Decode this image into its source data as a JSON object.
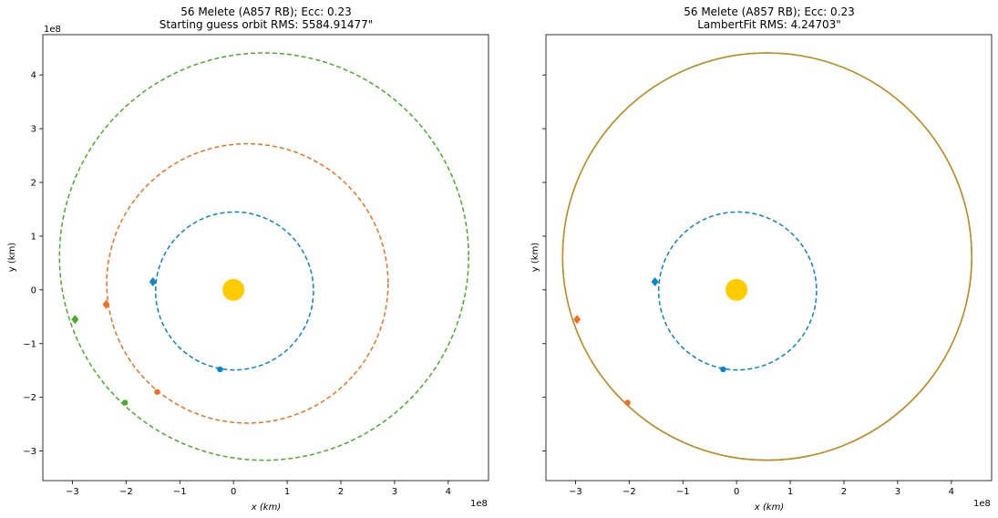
{
  "chart_data": [
    {
      "type": "scatter",
      "title_line1": "56 Melete (A857 RB); Ecc: 0.23",
      "title_line2": "Starting guess orbit RMS: 5584.91477\"",
      "xlabel": "x (km)",
      "ylabel": "y (km)",
      "x_offset_label": "1e8",
      "y_offset_label": "1e8",
      "xlim": [
        -3.55,
        4.75
      ],
      "ylim": [
        -3.55,
        4.75
      ],
      "xticks": [
        -3,
        -2,
        -1,
        0,
        1,
        2,
        3,
        4
      ],
      "yticks": [
        -3,
        -2,
        -1,
        0,
        1,
        2,
        3,
        4
      ],
      "show_yticklabels": true,
      "grid": false,
      "sun": {
        "x": 0,
        "y": 0,
        "color": "#ffcc00"
      },
      "orbits": [
        {
          "cx": 0.02,
          "cy": -0.02,
          "rx": 1.47,
          "ry": 1.47,
          "color": "#0a84c8",
          "style": "dashed"
        },
        {
          "cx": 0.26,
          "cy": 0.12,
          "rx": 2.62,
          "ry": 2.6,
          "color": "#f07020",
          "style": "dashed"
        },
        {
          "cx": 0.57,
          "cy": 0.62,
          "rx": 3.81,
          "ry": 3.79,
          "color": "#4aaa2a",
          "style": "dashed"
        }
      ],
      "markers": [
        {
          "x": -1.5,
          "y": 0.15,
          "shape": "diamond",
          "color": "#0a84c8"
        },
        {
          "x": -0.25,
          "y": -1.48,
          "shape": "circle",
          "color": "#0a84c8"
        },
        {
          "x": -2.37,
          "y": -0.27,
          "shape": "diamond",
          "color": "#f07020"
        },
        {
          "x": -1.42,
          "y": -1.9,
          "shape": "circle",
          "color": "#f07020"
        },
        {
          "x": -2.95,
          "y": -0.55,
          "shape": "diamond",
          "color": "#4aaa2a"
        },
        {
          "x": -2.02,
          "y": -2.1,
          "shape": "circle",
          "color": "#4aaa2a"
        }
      ]
    },
    {
      "type": "scatter",
      "title_line1": "56 Melete (A857 RB); Ecc: 0.23",
      "title_line2": "LambertFit RMS: 4.24703\"",
      "xlabel": "x (km)",
      "ylabel": "y (km)",
      "x_offset_label": "1e8",
      "y_offset_label": "",
      "xlim": [
        -3.55,
        4.75
      ],
      "ylim": [
        -3.55,
        4.75
      ],
      "xticks": [
        -3,
        -2,
        -1,
        0,
        1,
        2,
        3,
        4
      ],
      "yticks": [
        -3,
        -2,
        -1,
        0,
        1,
        2,
        3,
        4
      ],
      "show_yticklabels": false,
      "grid": false,
      "sun": {
        "x": 0,
        "y": 0,
        "color": "#ffcc00"
      },
      "orbits": [
        {
          "cx": 0.02,
          "cy": -0.02,
          "rx": 1.47,
          "ry": 1.47,
          "color": "#0a84c8",
          "style": "dashed"
        },
        {
          "cx": 0.57,
          "cy": 0.62,
          "rx": 3.81,
          "ry": 3.79,
          "color": "#4aaa2a",
          "style": "solid"
        },
        {
          "cx": 0.57,
          "cy": 0.62,
          "rx": 3.81,
          "ry": 3.79,
          "color": "#c88a20",
          "style": "solid"
        }
      ],
      "markers": [
        {
          "x": -1.52,
          "y": 0.15,
          "shape": "diamond",
          "color": "#0a84c8"
        },
        {
          "x": -0.25,
          "y": -1.48,
          "shape": "circle",
          "color": "#0a84c8"
        },
        {
          "x": -2.97,
          "y": -0.55,
          "shape": "diamond",
          "color": "#f07020"
        },
        {
          "x": -2.03,
          "y": -2.1,
          "shape": "circle",
          "color": "#f07020"
        }
      ]
    }
  ]
}
